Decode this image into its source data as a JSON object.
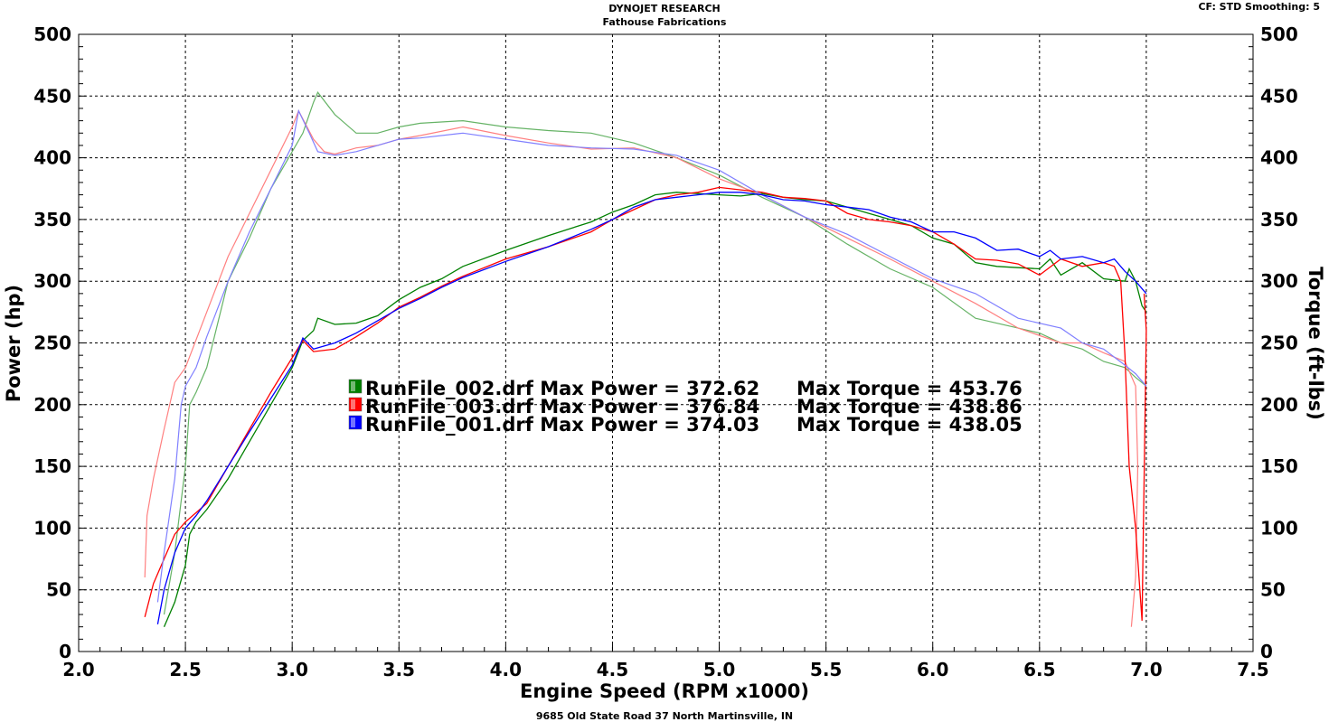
{
  "header": {
    "title": "DYNOJET RESEARCH",
    "subtitle": "Fathouse Fabrications",
    "settings": "CF: STD  Smoothing: 5"
  },
  "footer": {
    "address": "9685 Old State Road 37 North Martinsville, IN"
  },
  "chart_data": {
    "type": "line",
    "xlabel": "Engine Speed (RPM x1000)",
    "ylabel_left": "Power (hp)",
    "ylabel_right": "Torque (ft-lbs)",
    "xlim": [
      2.0,
      7.5
    ],
    "ylim": [
      0,
      500
    ],
    "x_ticks": [
      "2.0",
      "2.5",
      "3.0",
      "3.5",
      "4.0",
      "4.5",
      "5.0",
      "5.5",
      "6.0",
      "6.5",
      "7.0",
      "7.5"
    ],
    "y_ticks": [
      "0",
      "50",
      "100",
      "150",
      "200",
      "250",
      "300",
      "350",
      "400",
      "450",
      "500"
    ],
    "grid": true,
    "legend_position": "center-left",
    "series": [
      {
        "name": "RunFile_002.drf",
        "color": "#008000",
        "max_power_label": "Max Power = 372.62",
        "max_torque_label": "Max Torque = 453.76",
        "power": [
          [
            2.4,
            20
          ],
          [
            2.45,
            40
          ],
          [
            2.5,
            70
          ],
          [
            2.52,
            95
          ],
          [
            2.55,
            105
          ],
          [
            2.6,
            115
          ],
          [
            2.7,
            140
          ],
          [
            2.8,
            170
          ],
          [
            2.9,
            200
          ],
          [
            3.0,
            230
          ],
          [
            3.05,
            252
          ],
          [
            3.1,
            260
          ],
          [
            3.12,
            270
          ],
          [
            3.2,
            265
          ],
          [
            3.3,
            266
          ],
          [
            3.4,
            272
          ],
          [
            3.5,
            285
          ],
          [
            3.6,
            295
          ],
          [
            3.7,
            302
          ],
          [
            3.8,
            312
          ],
          [
            4.0,
            325
          ],
          [
            4.2,
            337
          ],
          [
            4.4,
            348
          ],
          [
            4.5,
            356
          ],
          [
            4.6,
            362
          ],
          [
            4.7,
            370
          ],
          [
            4.8,
            372
          ],
          [
            4.9,
            371
          ],
          [
            5.0,
            370
          ],
          [
            5.1,
            369
          ],
          [
            5.2,
            371
          ],
          [
            5.3,
            368
          ],
          [
            5.4,
            366
          ],
          [
            5.5,
            365
          ],
          [
            5.6,
            360
          ],
          [
            5.7,
            355
          ],
          [
            5.8,
            350
          ],
          [
            5.9,
            345
          ],
          [
            6.0,
            335
          ],
          [
            6.1,
            330
          ],
          [
            6.2,
            315
          ],
          [
            6.3,
            312
          ],
          [
            6.4,
            311
          ],
          [
            6.5,
            310
          ],
          [
            6.55,
            318
          ],
          [
            6.6,
            305
          ],
          [
            6.7,
            315
          ],
          [
            6.8,
            302
          ],
          [
            6.9,
            300
          ],
          [
            6.92,
            310
          ],
          [
            6.95,
            300
          ],
          [
            6.98,
            280
          ],
          [
            7.0,
            275
          ]
        ],
        "torque": [
          [
            2.4,
            30
          ],
          [
            2.45,
            80
          ],
          [
            2.5,
            150
          ],
          [
            2.52,
            200
          ],
          [
            2.55,
            210
          ],
          [
            2.6,
            230
          ],
          [
            2.7,
            300
          ],
          [
            2.8,
            335
          ],
          [
            2.9,
            375
          ],
          [
            3.0,
            405
          ],
          [
            3.05,
            420
          ],
          [
            3.1,
            445
          ],
          [
            3.12,
            453
          ],
          [
            3.2,
            435
          ],
          [
            3.3,
            420
          ],
          [
            3.4,
            420
          ],
          [
            3.5,
            425
          ],
          [
            3.6,
            428
          ],
          [
            3.8,
            430
          ],
          [
            4.0,
            425
          ],
          [
            4.2,
            422
          ],
          [
            4.4,
            420
          ],
          [
            4.6,
            412
          ],
          [
            4.8,
            400
          ],
          [
            5.0,
            386
          ],
          [
            5.2,
            368
          ],
          [
            5.4,
            352
          ],
          [
            5.6,
            330
          ],
          [
            5.8,
            310
          ],
          [
            6.0,
            295
          ],
          [
            6.2,
            270
          ],
          [
            6.4,
            262
          ],
          [
            6.5,
            258
          ],
          [
            6.6,
            250
          ],
          [
            6.7,
            245
          ],
          [
            6.8,
            235
          ],
          [
            6.9,
            230
          ],
          [
            6.95,
            222
          ],
          [
            7.0,
            215
          ]
        ]
      },
      {
        "name": "RunFile_003.drf",
        "color": "#ff0000",
        "max_power_label": "Max Power = 376.84",
        "max_torque_label": "Max Torque = 438.86",
        "power": [
          [
            2.31,
            28
          ],
          [
            2.35,
            55
          ],
          [
            2.4,
            75
          ],
          [
            2.45,
            95
          ],
          [
            2.5,
            105
          ],
          [
            2.6,
            120
          ],
          [
            2.7,
            150
          ],
          [
            2.8,
            180
          ],
          [
            2.9,
            210
          ],
          [
            3.0,
            238
          ],
          [
            3.05,
            252
          ],
          [
            3.1,
            243
          ],
          [
            3.2,
            245
          ],
          [
            3.3,
            255
          ],
          [
            3.4,
            266
          ],
          [
            3.5,
            279
          ],
          [
            3.6,
            287
          ],
          [
            3.7,
            296
          ],
          [
            3.8,
            304
          ],
          [
            4.0,
            318
          ],
          [
            4.2,
            328
          ],
          [
            4.4,
            340
          ],
          [
            4.5,
            350
          ],
          [
            4.6,
            358
          ],
          [
            4.7,
            366
          ],
          [
            4.8,
            370
          ],
          [
            4.9,
            372
          ],
          [
            5.0,
            376
          ],
          [
            5.1,
            374
          ],
          [
            5.2,
            372
          ],
          [
            5.3,
            368
          ],
          [
            5.4,
            367
          ],
          [
            5.5,
            365
          ],
          [
            5.6,
            355
          ],
          [
            5.7,
            350
          ],
          [
            5.8,
            348
          ],
          [
            5.9,
            345
          ],
          [
            6.0,
            340
          ],
          [
            6.1,
            330
          ],
          [
            6.2,
            318
          ],
          [
            6.3,
            317
          ],
          [
            6.4,
            314
          ],
          [
            6.5,
            305
          ],
          [
            6.6,
            318
          ],
          [
            6.7,
            312
          ],
          [
            6.8,
            315
          ],
          [
            6.85,
            312
          ],
          [
            6.88,
            300
          ],
          [
            6.9,
            240
          ],
          [
            6.92,
            150
          ],
          [
            6.95,
            100
          ],
          [
            6.97,
            50
          ],
          [
            6.98,
            25
          ],
          [
            7.0,
            260
          ],
          [
            6.99,
            290
          ]
        ],
        "torque": [
          [
            2.31,
            60
          ],
          [
            2.32,
            110
          ],
          [
            2.35,
            140
          ],
          [
            2.4,
            180
          ],
          [
            2.45,
            218
          ],
          [
            2.5,
            230
          ],
          [
            2.6,
            275
          ],
          [
            2.7,
            320
          ],
          [
            2.8,
            355
          ],
          [
            2.9,
            390
          ],
          [
            3.0,
            425
          ],
          [
            3.03,
            438
          ],
          [
            3.1,
            415
          ],
          [
            3.15,
            405
          ],
          [
            3.2,
            403
          ],
          [
            3.3,
            408
          ],
          [
            3.4,
            410
          ],
          [
            3.5,
            415
          ],
          [
            3.6,
            418
          ],
          [
            3.8,
            425
          ],
          [
            4.0,
            418
          ],
          [
            4.2,
            412
          ],
          [
            4.4,
            407
          ],
          [
            4.6,
            408
          ],
          [
            4.8,
            400
          ],
          [
            5.0,
            383
          ],
          [
            5.2,
            370
          ],
          [
            5.4,
            352
          ],
          [
            5.6,
            335
          ],
          [
            5.8,
            318
          ],
          [
            6.0,
            300
          ],
          [
            6.2,
            282
          ],
          [
            6.4,
            262
          ],
          [
            6.6,
            250
          ],
          [
            6.7,
            250
          ],
          [
            6.8,
            242
          ],
          [
            6.9,
            235
          ],
          [
            6.95,
            215
          ],
          [
            6.96,
            150
          ],
          [
            6.95,
            60
          ],
          [
            6.93,
            20
          ]
        ]
      },
      {
        "name": "RunFile_001.drf",
        "color": "#0000ff",
        "max_power_label": "Max Power = 374.03",
        "max_torque_label": "Max Torque = 438.05",
        "power": [
          [
            2.37,
            22
          ],
          [
            2.4,
            50
          ],
          [
            2.45,
            80
          ],
          [
            2.5,
            100
          ],
          [
            2.55,
            110
          ],
          [
            2.6,
            122
          ],
          [
            2.7,
            150
          ],
          [
            2.8,
            178
          ],
          [
            2.9,
            205
          ],
          [
            3.0,
            232
          ],
          [
            3.05,
            254
          ],
          [
            3.1,
            245
          ],
          [
            3.2,
            250
          ],
          [
            3.3,
            258
          ],
          [
            3.4,
            268
          ],
          [
            3.5,
            278
          ],
          [
            3.6,
            286
          ],
          [
            3.7,
            295
          ],
          [
            3.8,
            303
          ],
          [
            4.0,
            316
          ],
          [
            4.2,
            328
          ],
          [
            4.4,
            342
          ],
          [
            4.5,
            350
          ],
          [
            4.6,
            360
          ],
          [
            4.7,
            366
          ],
          [
            4.8,
            368
          ],
          [
            4.9,
            370
          ],
          [
            5.0,
            372
          ],
          [
            5.1,
            372
          ],
          [
            5.2,
            370
          ],
          [
            5.3,
            366
          ],
          [
            5.4,
            365
          ],
          [
            5.5,
            362
          ],
          [
            5.6,
            360
          ],
          [
            5.7,
            358
          ],
          [
            5.8,
            352
          ],
          [
            5.9,
            348
          ],
          [
            6.0,
            340
          ],
          [
            6.1,
            340
          ],
          [
            6.2,
            335
          ],
          [
            6.3,
            325
          ],
          [
            6.4,
            326
          ],
          [
            6.5,
            320
          ],
          [
            6.55,
            325
          ],
          [
            6.6,
            318
          ],
          [
            6.7,
            320
          ],
          [
            6.8,
            315
          ],
          [
            6.85,
            318
          ],
          [
            6.9,
            308
          ],
          [
            6.95,
            300
          ],
          [
            7.0,
            290
          ]
        ],
        "torque": [
          [
            2.37,
            40
          ],
          [
            2.4,
            80
          ],
          [
            2.45,
            140
          ],
          [
            2.48,
            200
          ],
          [
            2.5,
            215
          ],
          [
            2.55,
            230
          ],
          [
            2.6,
            255
          ],
          [
            2.7,
            300
          ],
          [
            2.8,
            340
          ],
          [
            2.9,
            375
          ],
          [
            3.0,
            410
          ],
          [
            3.03,
            438
          ],
          [
            3.08,
            420
          ],
          [
            3.12,
            405
          ],
          [
            3.2,
            402
          ],
          [
            3.3,
            405
          ],
          [
            3.4,
            410
          ],
          [
            3.5,
            415
          ],
          [
            3.6,
            416
          ],
          [
            3.8,
            420
          ],
          [
            4.0,
            415
          ],
          [
            4.2,
            410
          ],
          [
            4.4,
            408
          ],
          [
            4.6,
            407
          ],
          [
            4.8,
            402
          ],
          [
            5.0,
            390
          ],
          [
            5.2,
            370
          ],
          [
            5.4,
            352
          ],
          [
            5.6,
            338
          ],
          [
            5.8,
            320
          ],
          [
            6.0,
            302
          ],
          [
            6.2,
            290
          ],
          [
            6.4,
            270
          ],
          [
            6.6,
            262
          ],
          [
            6.7,
            250
          ],
          [
            6.8,
            245
          ],
          [
            6.9,
            232
          ],
          [
            6.95,
            225
          ],
          [
            7.0,
            215
          ]
        ]
      }
    ]
  }
}
